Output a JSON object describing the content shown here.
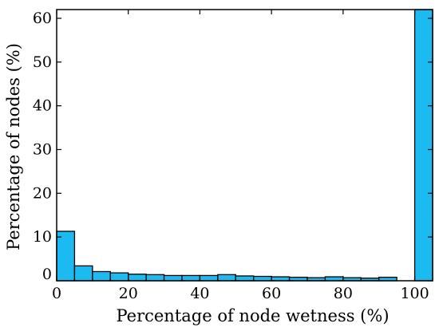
{
  "chart_data": {
    "type": "bar",
    "bin_width": 5,
    "x": [
      0,
      5,
      10,
      15,
      20,
      25,
      30,
      35,
      40,
      45,
      50,
      55,
      60,
      65,
      70,
      75,
      80,
      85,
      90,
      95,
      100
    ],
    "values": [
      11.3,
      3.4,
      2.1,
      1.8,
      1.5,
      1.4,
      1.2,
      1.2,
      1.2,
      1.4,
      1.1,
      1.0,
      0.9,
      0.8,
      0.7,
      0.9,
      0.7,
      0.6,
      0.8,
      0,
      62.0
    ],
    "xlabel": "Percentage of node wetness (%)",
    "ylabel": "Percentage of nodes (%)",
    "xlim": [
      0,
      105
    ],
    "ylim": [
      0,
      62
    ],
    "xticks": [
      0,
      20,
      40,
      60,
      80,
      100
    ],
    "yticks": [
      0,
      10,
      20,
      30,
      40,
      50,
      60
    ],
    "ytick_labels": [
      "0",
      "10",
      "20",
      "30",
      "40",
      "50",
      "60"
    ],
    "grid": false,
    "bar_color": "#1bbbf2",
    "edge_color": "#000000"
  }
}
